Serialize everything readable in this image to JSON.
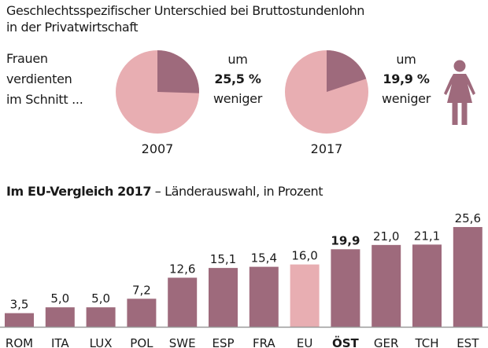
{
  "title_line1": "Geschlechtsspezifischer Unterschied bei Bruttostundenlohn",
  "title_line2": "in der Privatwirtschaft",
  "intro": [
    "Frauen",
    "verdienten",
    "im Schnitt ..."
  ],
  "colors": {
    "dark": "#9e6a7c",
    "light": "#e8aeb2",
    "text": "#1a1a1a",
    "axis": "#999999"
  },
  "pies": [
    {
      "year": "2007",
      "pre": "um",
      "value_label": "25,5 %",
      "post": "weniger",
      "gap_percent": 25.5
    },
    {
      "year": "2017",
      "pre": "um",
      "value_label": "19,9 %",
      "post": "weniger",
      "gap_percent": 19.9
    }
  ],
  "icon": "woman-icon",
  "subtitle_bold": "Im EU-Vergleich 2017",
  "subtitle_rest": " – Länderauswahl, in Prozent",
  "chart_data": {
    "type": "bar",
    "title": "Im EU-Vergleich 2017 – Länderauswahl, in Prozent",
    "xlabel": "",
    "ylabel": "",
    "grid": false,
    "categories": [
      "ROM",
      "ITA",
      "LUX",
      "POL",
      "SWE",
      "ESP",
      "FRA",
      "EU",
      "ÖST",
      "GER",
      "TCH",
      "EST"
    ],
    "values": [
      3.5,
      5.0,
      5.0,
      7.2,
      12.6,
      15.1,
      15.4,
      16.0,
      19.9,
      21.0,
      21.1,
      25.6
    ],
    "value_labels": [
      "3,5",
      "5,0",
      "5,0",
      "7,2",
      "12,6",
      "15,1",
      "15,4",
      "16,0",
      "19,9",
      "21,0",
      "21,1",
      "25,6"
    ],
    "highlight_light": [
      "EU"
    ],
    "highlight_bold": [
      "ÖST"
    ],
    "ylim": [
      0,
      26
    ]
  }
}
